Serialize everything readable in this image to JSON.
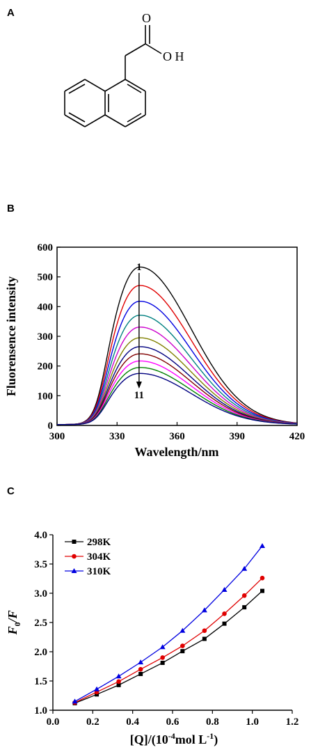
{
  "panels": {
    "a_label": "A",
    "b_label": "B",
    "c_label": "C"
  },
  "molecule": {
    "atom_o_top": "O",
    "atom_oh": "O H"
  },
  "chart_data": [
    {
      "type": "line",
      "panel": "B",
      "xlabel": "Wavelength/nm",
      "ylabel": "Fluorensence intensity",
      "xlim": [
        300,
        420
      ],
      "ylim": [
        0,
        600
      ],
      "xticks": [
        300,
        330,
        360,
        390,
        420
      ],
      "yticks": [
        0,
        100,
        200,
        300,
        400,
        500,
        600
      ],
      "annotations": {
        "top": "1",
        "bottom": "11",
        "arrow_x": 341
      },
      "peak_wavelength": 341,
      "series": [
        {
          "name": "1",
          "peak": 530,
          "color": "#000000"
        },
        {
          "name": "2",
          "peak": 468,
          "color": "#e00000"
        },
        {
          "name": "3",
          "peak": 415,
          "color": "#0000e0"
        },
        {
          "name": "4",
          "peak": 368,
          "color": "#008080"
        },
        {
          "name": "5",
          "peak": 328,
          "color": "#cc00cc"
        },
        {
          "name": "6",
          "peak": 292,
          "color": "#808000"
        },
        {
          "name": "7",
          "peak": 262,
          "color": "#000080"
        },
        {
          "name": "8",
          "peak": 238,
          "color": "#800000"
        },
        {
          "name": "9",
          "peak": 214,
          "color": "#ff00ff"
        },
        {
          "name": "10",
          "peak": 192,
          "color": "#008000"
        },
        {
          "name": "11",
          "peak": 172,
          "color": "#000080"
        }
      ]
    },
    {
      "type": "line",
      "panel": "C",
      "ylabel_main": "F",
      "ylabel_sub": "0",
      "ylabel_rest": "/F",
      "xlabel_pre": "[Q]/(10",
      "xlabel_sup": "-4",
      "xlabel_post": "mol L",
      "xlabel_sup2": "-1",
      "xlabel_end": ")",
      "xlim": [
        0.0,
        1.2
      ],
      "ylim": [
        1.0,
        4.0
      ],
      "xticks": [
        "0.0",
        "0.2",
        "0.4",
        "0.6",
        "0.8",
        "1.0",
        "1.2"
      ],
      "yticks": [
        "1.0",
        "1.5",
        "2.0",
        "2.5",
        "3.0",
        "3.5",
        "4.0"
      ],
      "legend_position": "top-left",
      "x": [
        0.11,
        0.22,
        0.33,
        0.44,
        0.55,
        0.65,
        0.76,
        0.86,
        0.96,
        1.05
      ],
      "series": [
        {
          "name": "298K",
          "marker": "square",
          "color": "#000000",
          "values": [
            1.12,
            1.27,
            1.43,
            1.62,
            1.81,
            2.01,
            2.22,
            2.48,
            2.76,
            3.04
          ]
        },
        {
          "name": "304K",
          "marker": "circle",
          "color": "#e00000",
          "values": [
            1.13,
            1.31,
            1.49,
            1.7,
            1.9,
            2.1,
            2.36,
            2.65,
            2.96,
            3.26
          ]
        },
        {
          "name": "310K",
          "marker": "triangle",
          "color": "#0000e0",
          "values": [
            1.15,
            1.36,
            1.58,
            1.82,
            2.08,
            2.36,
            2.71,
            3.06,
            3.42,
            3.81
          ]
        }
      ]
    }
  ]
}
